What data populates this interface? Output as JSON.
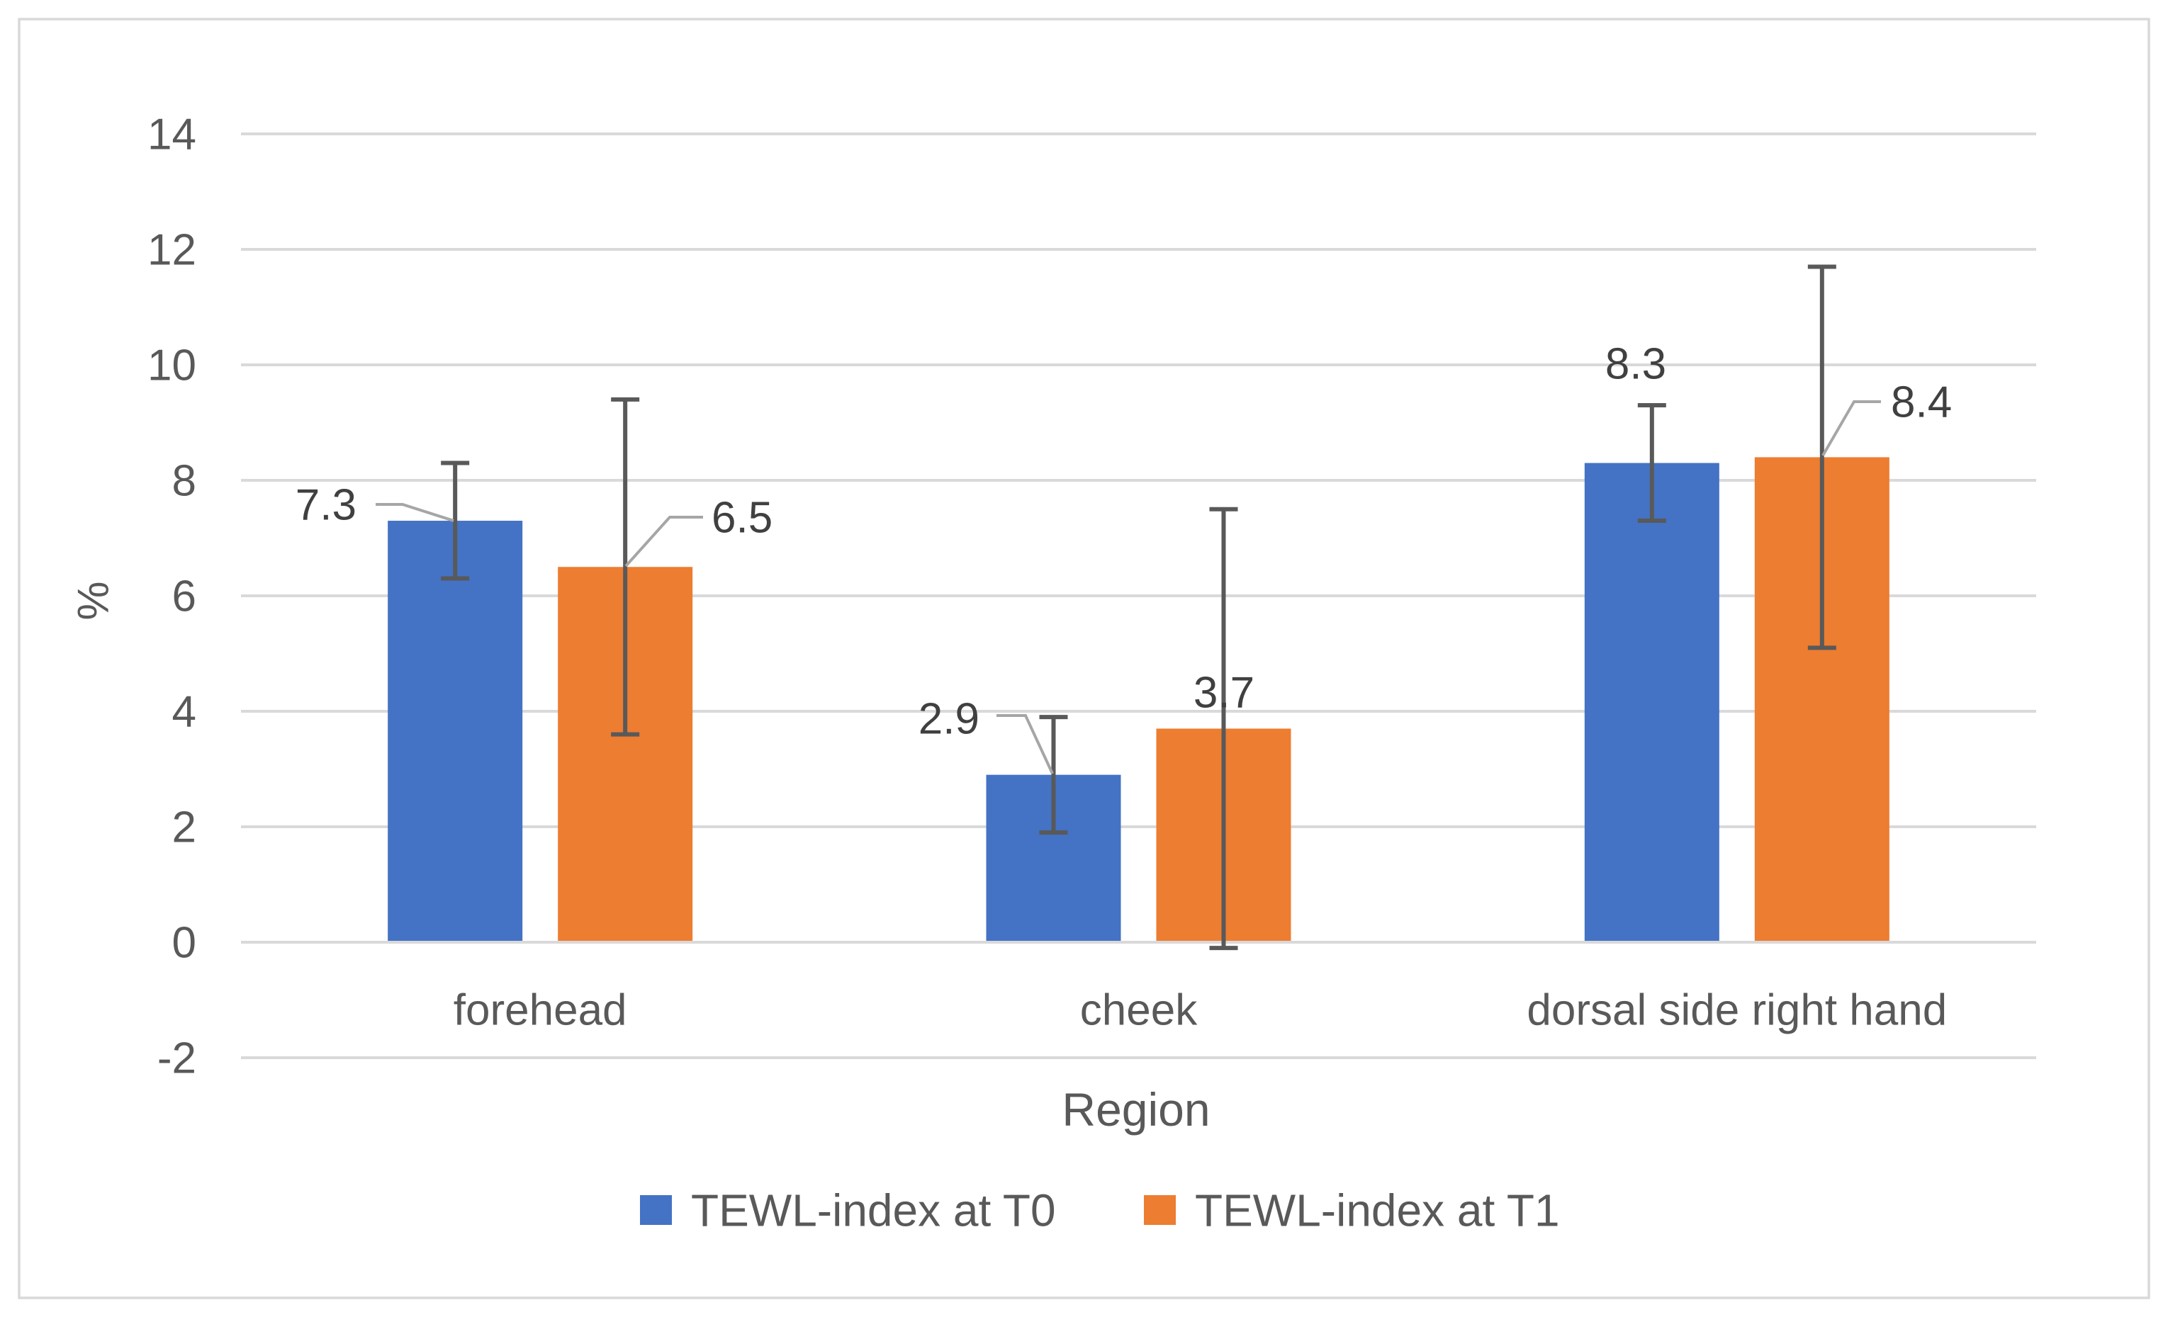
{
  "figure": {
    "background": "#ffffff",
    "border_color": "#d9d9d9"
  },
  "chart_data": {
    "type": "bar",
    "title": "",
    "categories": [
      "forehead",
      "cheek",
      "dorsal side right hand"
    ],
    "series": [
      {
        "name": "TEWL-index at T0",
        "color": "#4472C4",
        "values": [
          7.3,
          2.9,
          8.3
        ],
        "error_low": [
          6.3,
          1.9,
          7.3
        ],
        "error_high": [
          8.3,
          3.9,
          9.3
        ],
        "data_labels": [
          "7.3",
          "2.9",
          "8.3"
        ]
      },
      {
        "name": "TEWL-index at T1",
        "color": "#ED7D31",
        "values": [
          6.5,
          3.7,
          8.4
        ],
        "error_low": [
          3.6,
          -0.1,
          5.1
        ],
        "error_high": [
          9.4,
          7.5,
          11.7
        ],
        "data_labels": [
          "6.5",
          "3.7",
          "8.4"
        ]
      }
    ],
    "xlabel": "Region",
    "ylabel": "%",
    "ylim": [
      -2,
      14
    ],
    "ytick_step": 2,
    "ytick_labels": [
      "-2",
      "0",
      "2",
      "4",
      "6",
      "8",
      "10",
      "12",
      "14"
    ],
    "grid": true,
    "legend_position": "bottom",
    "colors": {
      "gridline": "#d9d9d9",
      "error_bar": "#595959",
      "leader_line": "#a6a6a6",
      "axis_text": "#595959",
      "data_label_text": "#404040"
    }
  }
}
